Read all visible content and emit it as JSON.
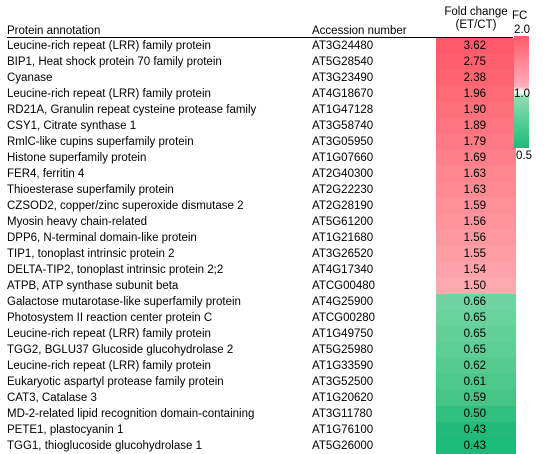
{
  "headers": {
    "annotation": "Protein annotation",
    "accession": "Accession number",
    "fold_change_line1": "Fold change",
    "fold_change_line2": "(ET/CT)"
  },
  "legend": {
    "title": "FC",
    "max": "2.0",
    "mid": "1.0",
    "min": "0.5",
    "colors": {
      "high": "#ff5a6a",
      "mid": "#ffffff",
      "low": "#1dbb78"
    }
  },
  "rows": [
    {
      "annotation": "Leucine-rich repeat (LRR) family protein",
      "accession": "AT3G24480",
      "fc": "3.62",
      "color": "#ff5a6a"
    },
    {
      "annotation": "BIP1, Heat shock protein 70 family protein",
      "accession": "AT5G28540",
      "fc": "2.75",
      "color": "#ff5f6e"
    },
    {
      "annotation": "Cyanase",
      "accession": "AT3G23490",
      "fc": "2.38",
      "color": "#ff6472"
    },
    {
      "annotation": "Leucine-rich repeat (LRR) family protein",
      "accession": "AT4G18670",
      "fc": "1.96",
      "color": "#ff6a77"
    },
    {
      "annotation": "RD21A, Granulin repeat cysteine protease family",
      "accession": "AT1G47128",
      "fc": "1.90",
      "color": "#ff6f7c"
    },
    {
      "annotation": "CSY1, Citrate synthase 1",
      "accession": "AT3G58740",
      "fc": "1.89",
      "color": "#ff7480"
    },
    {
      "annotation": "RmlC-like cupins superfamily protein",
      "accession": "AT3G05950",
      "fc": "1.79",
      "color": "#ff7a85"
    },
    {
      "annotation": "Histone superfamily protein",
      "accession": "AT1G07660",
      "fc": "1.69",
      "color": "#ff808a"
    },
    {
      "annotation": "FER4, ferritin 4",
      "accession": "AT2G40300",
      "fc": "1.63",
      "color": "#ff858f"
    },
    {
      "annotation": "Thioesterase superfamily protein",
      "accession": "AT2G22230",
      "fc": "1.63",
      "color": "#ff8a93"
    },
    {
      "annotation": "CZSOD2, copper/zinc superoxide dismutase 2",
      "accession": "AT2G28190",
      "fc": "1.59",
      "color": "#ff8f98"
    },
    {
      "annotation": "Myosin heavy chain-related",
      "accession": "AT5G61200",
      "fc": "1.56",
      "color": "#ff949c"
    },
    {
      "annotation": "DPP6, N-terminal domain-like protein",
      "accession": "AT1G21680",
      "fc": "1.56",
      "color": "#ff99a1"
    },
    {
      "annotation": "TIP1, tonoplast intrinsic protein 2",
      "accession": "AT3G26520",
      "fc": "1.55",
      "color": "#ff9ea5"
    },
    {
      "annotation": "DELTA-TIP2, tonoplast intrinsic protein 2;2",
      "accession": "AT4G17340",
      "fc": "1.54",
      "color": "#ffa3aa"
    },
    {
      "annotation": "ATPB, ATP synthase subunit beta",
      "accession": "ATCG00480",
      "fc": "1.50",
      "color": "#ffa8ae"
    },
    {
      "annotation": "Galactose mutarotase-like superfamily protein",
      "accession": "AT4G25900",
      "fc": "0.66",
      "color": "#6fd4a1"
    },
    {
      "annotation": "Photosystem II reaction center protein C",
      "accession": "ATCG00280",
      "fc": "0.65",
      "color": "#69d29d"
    },
    {
      "annotation": "Leucine-rich repeat (LRR) family protein",
      "accession": "AT1G49750",
      "fc": "0.65",
      "color": "#63d099"
    },
    {
      "annotation": "TGG2, BGLU37 Glucoside glucohydrolase 2",
      "accession": "AT5G25980",
      "fc": "0.65",
      "color": "#5dce95"
    },
    {
      "annotation": "Leucine-rich repeat (LRR) family protein",
      "accession": "AT1G33590",
      "fc": "0.62",
      "color": "#55cb90"
    },
    {
      "annotation": "Eukaryotic aspartyl protease family protein",
      "accession": "AT3G52500",
      "fc": "0.61",
      "color": "#4dc88b"
    },
    {
      "annotation": "CAT3, Catalase 3",
      "accession": "AT1G20620",
      "fc": "0.59",
      "color": "#45c586"
    },
    {
      "annotation": "MD-2-related lipid recognition domain-containing",
      "accession": "AT3G11780",
      "fc": "0.50",
      "color": "#30bf7e"
    },
    {
      "annotation": "PETE1, plastocyanin 1",
      "accession": "AT1G76100",
      "fc": "0.43",
      "color": "#22bb79"
    },
    {
      "annotation": "TGG1, thioglucoside glucohydrolase 1",
      "accession": "AT5G26000",
      "fc": "0.43",
      "color": "#1dbb78"
    }
  ]
}
